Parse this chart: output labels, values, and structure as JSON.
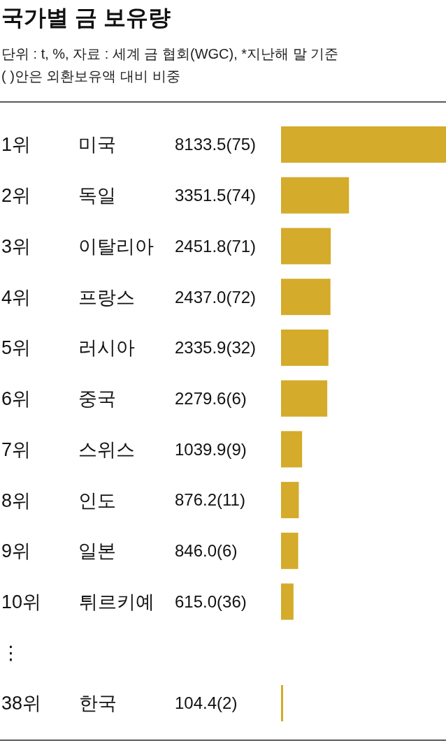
{
  "chart_data": {
    "type": "bar",
    "orientation": "horizontal",
    "title": "국가별 금 보유량",
    "subtitle": "단위 : t, %, 자료 : 세계 금 협회(WGC), *지난해 말 기준",
    "annotations": [
      "( )안은 외환보유액 대비 비중"
    ],
    "categories": [
      "1위 미국",
      "2위 독일",
      "3위 이탈리아",
      "4위 프랑스",
      "5위 러시아",
      "6위 중국",
      "7위 스위스",
      "8위 인도",
      "9위 일본",
      "10위 튀르키예",
      "⋮",
      "38위 한국"
    ],
    "values": [
      8133.5,
      3351.5,
      2451.8,
      2437.0,
      2335.9,
      2279.6,
      1039.9,
      876.2,
      846.0,
      615.0,
      null,
      104.4
    ],
    "value_labels": [
      "8133.5(75)",
      "3351.5(74)",
      "2451.8(71)",
      "2437.0(72)",
      "2335.9(32)",
      "2279.6(6)",
      "1039.9(9)",
      "876.2(11)",
      "846.0(6)",
      "615.0(36)",
      null,
      "104.4(2)"
    ],
    "color": "#d4ab2a"
  }
}
